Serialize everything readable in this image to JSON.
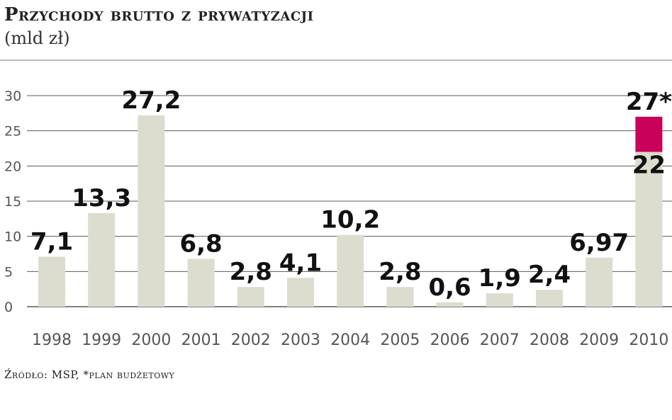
{
  "title": "Przychody brutto z prywatyzacji",
  "subtitle": "(mld zł)",
  "source": "Źródło: MSP, *plan budżetowy",
  "colors": {
    "bar": "#dcdccf",
    "highlight": "#c8005a",
    "grid": "#5a5a5a"
  },
  "chart_data": {
    "type": "bar",
    "title": "Przychody brutto z prywatyzacji",
    "subtitle": "(mld zł)",
    "categories": [
      "1998",
      "1999",
      "2000",
      "2001",
      "2002",
      "2003",
      "2004",
      "2005",
      "2006",
      "2007",
      "2008",
      "2009",
      "2010"
    ],
    "values": [
      7.1,
      13.3,
      27.2,
      6.8,
      2.8,
      4.1,
      10.2,
      2.8,
      0.6,
      1.9,
      2.4,
      6.97,
      22
    ],
    "labels": [
      "7,1",
      "13,3",
      "27,2",
      "6,8",
      "2,8",
      "4,1",
      "10,2",
      "2,8",
      "0,6",
      "1,9",
      "2,4",
      "6,97",
      "22"
    ],
    "highlight": {
      "category": "2010",
      "from": 22,
      "to": 27,
      "label": "27*"
    },
    "yticks": [
      0,
      5,
      10,
      15,
      20,
      25,
      30
    ],
    "ylim": [
      0,
      30
    ],
    "grid": true
  }
}
